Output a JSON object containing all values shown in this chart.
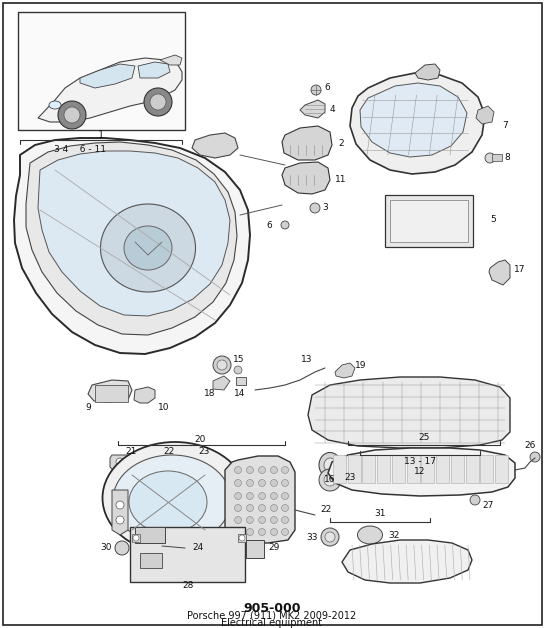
{
  "title": "905-000",
  "subtitle": "Porsche 997 (911) MK2 2009-2012",
  "subtitle2": "Electrical equipment",
  "bg": "#ffffff",
  "lc": "#000000",
  "gray1": "#e8e8e8",
  "gray2": "#d0d0d0",
  "gray3": "#f0f0f0",
  "line_gray": "#555555",
  "fig_w": 5.45,
  "fig_h": 6.28,
  "dpi": 100
}
